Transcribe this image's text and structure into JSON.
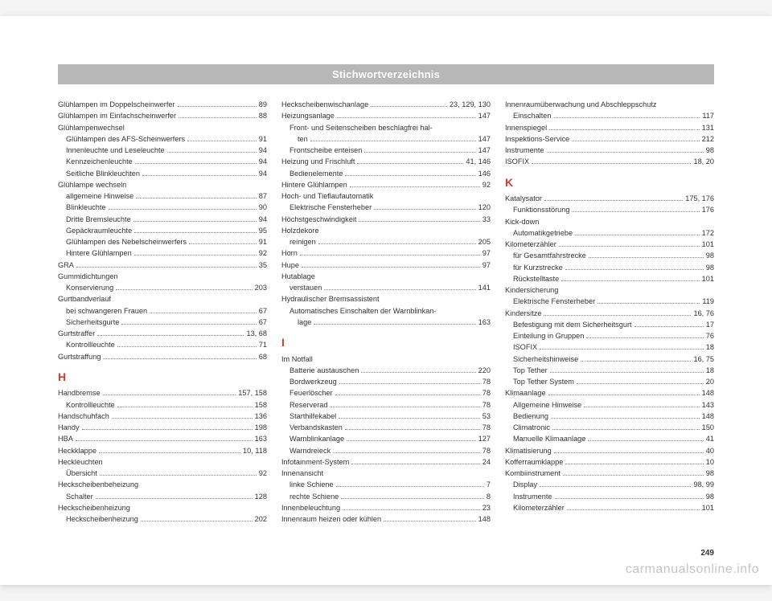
{
  "header": {
    "title": "Stichwortverzeichnis"
  },
  "page_number": "249",
  "watermark": "carmanualsonline.info",
  "letters": {
    "H": "H",
    "I": "I",
    "K": "K"
  },
  "col1": [
    {
      "t": "Glühlampen im Doppelscheinwerfer",
      "p": "89"
    },
    {
      "t": "Glühlampen im Einfachscheinwerfer",
      "p": "88"
    },
    {
      "t": "Glühlampenwechsel",
      "nopage": true
    },
    {
      "t": "Glühlampen des AFS-Scheinwerfers",
      "p": "91",
      "sub": true
    },
    {
      "t": "Innenleuchte und Leseleuchte",
      "p": "94",
      "sub": true
    },
    {
      "t": "Kennzeichenleuchte",
      "p": "94",
      "sub": true
    },
    {
      "t": "Seitliche Blinkleuchten",
      "p": "94",
      "sub": true
    },
    {
      "t": "Glühlampe wechseln",
      "nopage": true
    },
    {
      "t": "allgemeine Hinweise",
      "p": "87",
      "sub": true
    },
    {
      "t": "Blinkleuchte",
      "p": "90",
      "sub": true
    },
    {
      "t": "Dritte Bremsleuchte",
      "p": "94",
      "sub": true
    },
    {
      "t": "Gepäckraumleuchte",
      "p": "95",
      "sub": true
    },
    {
      "t": "Glühlampen des Nebelscheinwerfers",
      "p": "91",
      "sub": true
    },
    {
      "t": "Hintere Glühlampen",
      "p": "92",
      "sub": true
    },
    {
      "t": "GRA",
      "p": "35"
    },
    {
      "t": "Gummidichtungen",
      "nopage": true
    },
    {
      "t": "Konservierung",
      "p": "203",
      "sub": true
    },
    {
      "t": "Gurtbandverlauf",
      "nopage": true
    },
    {
      "t": "bei schwangeren Frauen",
      "p": "67",
      "sub": true
    },
    {
      "t": "Sicherheitsgurte",
      "p": "67",
      "sub": true
    },
    {
      "t": "Gurtstraffer",
      "p": "13, 68"
    },
    {
      "t": "Kontrollleuchte",
      "p": "71",
      "sub": true
    },
    {
      "t": "Gurtstraffung",
      "p": "68"
    },
    {
      "letter": "H"
    },
    {
      "t": "Handbremse",
      "p": "157, 158"
    },
    {
      "t": "Kontrollleuchte",
      "p": "158",
      "sub": true
    },
    {
      "t": "Handschuhfach",
      "p": "136"
    },
    {
      "t": "Handy",
      "p": "198"
    },
    {
      "t": "HBA",
      "p": "163"
    },
    {
      "t": "Heckklappe",
      "p": "10, 118"
    },
    {
      "t": "Heckleuchten",
      "nopage": true
    },
    {
      "t": "Übersicht",
      "p": "92",
      "sub": true
    },
    {
      "t": "Heckscheibenbeheizung",
      "nopage": true
    },
    {
      "t": "Schalter",
      "p": "128",
      "sub": true
    },
    {
      "t": "Heckscheibenheizung",
      "nopage": true
    },
    {
      "t": "Heckscheibenheizung",
      "p": "202",
      "sub": true
    }
  ],
  "col2": [
    {
      "t": "Heckscheibenwischanlage",
      "p": "23, 129, 130"
    },
    {
      "t": "Heizungsanlage",
      "p": "147"
    },
    {
      "t": "Front- und Seitenscheiben beschlagfrei hal-",
      "nopage": true,
      "sub": true
    },
    {
      "t": "ten",
      "p": "147",
      "sub": true,
      "extra": true
    },
    {
      "t": "Frontscheibe enteisen",
      "p": "147",
      "sub": true
    },
    {
      "t": "Heizung und Frischluft",
      "p": "41, 146"
    },
    {
      "t": "Bedienelemente",
      "p": "146",
      "sub": true
    },
    {
      "t": "Hintere Glühlampen",
      "p": "92"
    },
    {
      "t": "Hoch- und Tieflaufautomatik",
      "nopage": true
    },
    {
      "t": "Elektrische Fensterheber",
      "p": "120",
      "sub": true
    },
    {
      "t": "Höchstgeschwindigkeit",
      "p": "33"
    },
    {
      "t": "Holzdekore",
      "nopage": true
    },
    {
      "t": "reinigen",
      "p": "205",
      "sub": true
    },
    {
      "t": "Horn",
      "p": "97"
    },
    {
      "t": "Hupe",
      "p": "97"
    },
    {
      "t": "Hutablage",
      "nopage": true
    },
    {
      "t": "verstauen",
      "p": "141",
      "sub": true
    },
    {
      "t": "Hydraulischer Bremsassistent",
      "nopage": true
    },
    {
      "t": "Automatisches Einschalten der Warnblinkan-",
      "nopage": true,
      "sub": true
    },
    {
      "t": "lage",
      "p": "163",
      "sub": true,
      "extra": true
    },
    {
      "letter": "I"
    },
    {
      "t": "Im Notfall",
      "nopage": true
    },
    {
      "t": "Batterie austauschen",
      "p": "220",
      "sub": true
    },
    {
      "t": "Bordwerkzeug",
      "p": "78",
      "sub": true
    },
    {
      "t": "Feuerlöscher",
      "p": "78",
      "sub": true
    },
    {
      "t": "Reserverad",
      "p": "78",
      "sub": true
    },
    {
      "t": "Starthilfekabel",
      "p": "53",
      "sub": true
    },
    {
      "t": "Verbandskasten",
      "p": "78",
      "sub": true
    },
    {
      "t": "Warnblinkanlage",
      "p": "127",
      "sub": true
    },
    {
      "t": "Warndreieck",
      "p": "78",
      "sub": true
    },
    {
      "t": "Infotainment-System",
      "p": "24"
    },
    {
      "t": "Innenansicht",
      "nopage": true
    },
    {
      "t": "linke Schiene",
      "p": "7",
      "sub": true
    },
    {
      "t": "rechte Schiene",
      "p": "8",
      "sub": true
    },
    {
      "t": "Innenbeleuchtung",
      "p": "23"
    },
    {
      "t": "Innenraum heizen oder kühlen",
      "p": "148"
    }
  ],
  "col3": [
    {
      "t": "Innenraumüberwachung und Abschleppschutz",
      "nopage": true
    },
    {
      "t": "Einschalten",
      "p": "117",
      "sub": true
    },
    {
      "t": "Innenspiegel",
      "p": "131"
    },
    {
      "t": "Inspektions-Service",
      "p": "212"
    },
    {
      "t": "Instrumente",
      "p": "98"
    },
    {
      "t": "ISOFIX",
      "p": "18, 20"
    },
    {
      "letter": "K"
    },
    {
      "t": "Katalysator",
      "p": "175, 176"
    },
    {
      "t": "Funktionsstörung",
      "p": "176",
      "sub": true
    },
    {
      "t": "Kick-down",
      "nopage": true
    },
    {
      "t": "Automatikgetriebe",
      "p": "172",
      "sub": true
    },
    {
      "t": "Kilometerzähler",
      "p": "101"
    },
    {
      "t": "für Gesamtfahrstrecke",
      "p": "98",
      "sub": true
    },
    {
      "t": "für Kurzstrecke",
      "p": "98",
      "sub": true
    },
    {
      "t": "Rückstelltaste",
      "p": "101",
      "sub": true
    },
    {
      "t": "Kindersicherung",
      "nopage": true
    },
    {
      "t": "Elektrische Fensterheber",
      "p": "119",
      "sub": true
    },
    {
      "t": "Kindersitze",
      "p": "16, 76"
    },
    {
      "t": "Befestigung mit dem Sicherheitsgurt",
      "p": "17",
      "sub": true
    },
    {
      "t": "Einteilung in Gruppen",
      "p": "76",
      "sub": true
    },
    {
      "t": "ISOFIX",
      "p": "18",
      "sub": true
    },
    {
      "t": "Sicherheitshinweise",
      "p": "16, 75",
      "sub": true
    },
    {
      "t": "Top Tether",
      "p": "18",
      "sub": true
    },
    {
      "t": "Top Tether System",
      "p": "20",
      "sub": true
    },
    {
      "t": "Klimaanlage",
      "p": "148"
    },
    {
      "t": "Allgemeine Hinweise",
      "p": "143",
      "sub": true
    },
    {
      "t": "Bedienung",
      "p": "148",
      "sub": true
    },
    {
      "t": "Climatronic",
      "p": "150",
      "sub": true
    },
    {
      "t": "Manuelle Klimaanlage",
      "p": "41",
      "sub": true
    },
    {
      "t": "Klimatisierung",
      "p": "40"
    },
    {
      "t": "Kofferraumklappe",
      "p": "10"
    },
    {
      "t": "Kombiinstrument",
      "p": "98"
    },
    {
      "t": "Display",
      "p": "98, 99",
      "sub": true
    },
    {
      "t": "Instrumente",
      "p": "98",
      "sub": true
    },
    {
      "t": "Kilometerzähler",
      "p": "101",
      "sub": true
    }
  ]
}
